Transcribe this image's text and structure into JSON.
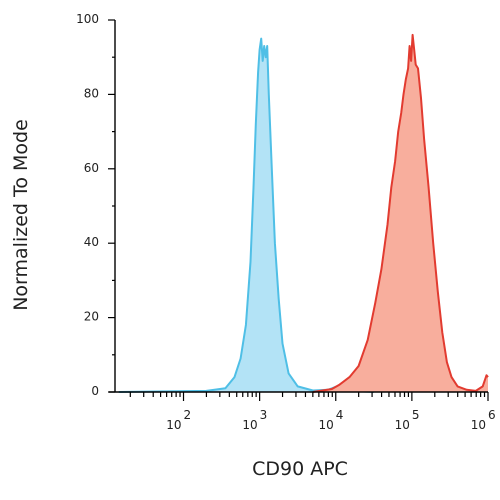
{
  "chart_data": {
    "type": "area",
    "title": "",
    "xlabel": "CD90 APC",
    "ylabel": "Normalized To Mode",
    "x_scale": "log",
    "xlim_log10": [
      1.1,
      6.0
    ],
    "ylim": [
      0,
      100
    ],
    "y_ticks": [
      "0",
      "20",
      "40",
      "60",
      "80",
      "100"
    ],
    "x_ticks": [
      {
        "base": "10",
        "exp": "2",
        "log": 2
      },
      {
        "base": "10",
        "exp": "3",
        "log": 3
      },
      {
        "base": "10",
        "exp": "4",
        "log": 4
      },
      {
        "base": "10",
        "exp": "5",
        "log": 5
      },
      {
        "base": "10",
        "exp": "6",
        "log": 6
      }
    ],
    "grid": false,
    "series": [
      {
        "color": "#4fbfe6",
        "fill": "#b3e3f6",
        "points": [
          [
            1.15,
            0
          ],
          [
            2.3,
            0.3
          ],
          [
            2.55,
            1
          ],
          [
            2.67,
            4
          ],
          [
            2.75,
            9
          ],
          [
            2.82,
            18
          ],
          [
            2.88,
            35
          ],
          [
            2.92,
            55
          ],
          [
            2.95,
            72
          ],
          [
            2.98,
            86
          ],
          [
            3.0,
            92
          ],
          [
            3.02,
            95
          ],
          [
            3.04,
            89
          ],
          [
            3.06,
            93
          ],
          [
            3.08,
            90
          ],
          [
            3.1,
            93
          ],
          [
            3.12,
            80
          ],
          [
            3.16,
            60
          ],
          [
            3.2,
            40
          ],
          [
            3.25,
            25
          ],
          [
            3.3,
            13
          ],
          [
            3.38,
            5
          ],
          [
            3.5,
            1.5
          ],
          [
            3.7,
            0.4
          ],
          [
            3.9,
            0.6
          ],
          [
            4.05,
            1.8
          ],
          [
            4.15,
            0.8
          ],
          [
            4.3,
            0.2
          ],
          [
            4.5,
            0
          ]
        ]
      },
      {
        "color": "#e23b30",
        "fill": "#f8ae9d",
        "points": [
          [
            3.7,
            0
          ],
          [
            3.95,
            0.8
          ],
          [
            4.05,
            2
          ],
          [
            4.18,
            4
          ],
          [
            4.3,
            7
          ],
          [
            4.42,
            14
          ],
          [
            4.52,
            24
          ],
          [
            4.6,
            33
          ],
          [
            4.68,
            45
          ],
          [
            4.73,
            55
          ],
          [
            4.78,
            62
          ],
          [
            4.82,
            70
          ],
          [
            4.86,
            75
          ],
          [
            4.89,
            80
          ],
          [
            4.92,
            84
          ],
          [
            4.95,
            87
          ],
          [
            4.97,
            93
          ],
          [
            4.99,
            89
          ],
          [
            5.01,
            96
          ],
          [
            5.03,
            92
          ],
          [
            5.05,
            88
          ],
          [
            5.08,
            87
          ],
          [
            5.12,
            79
          ],
          [
            5.16,
            68
          ],
          [
            5.22,
            55
          ],
          [
            5.28,
            40
          ],
          [
            5.34,
            27
          ],
          [
            5.4,
            16
          ],
          [
            5.46,
            8
          ],
          [
            5.52,
            4
          ],
          [
            5.6,
            1.5
          ],
          [
            5.72,
            0.6
          ],
          [
            5.84,
            0.3
          ],
          [
            5.93,
            1.5
          ],
          [
            5.98,
            4.5
          ],
          [
            6.0,
            4
          ]
        ]
      }
    ]
  }
}
